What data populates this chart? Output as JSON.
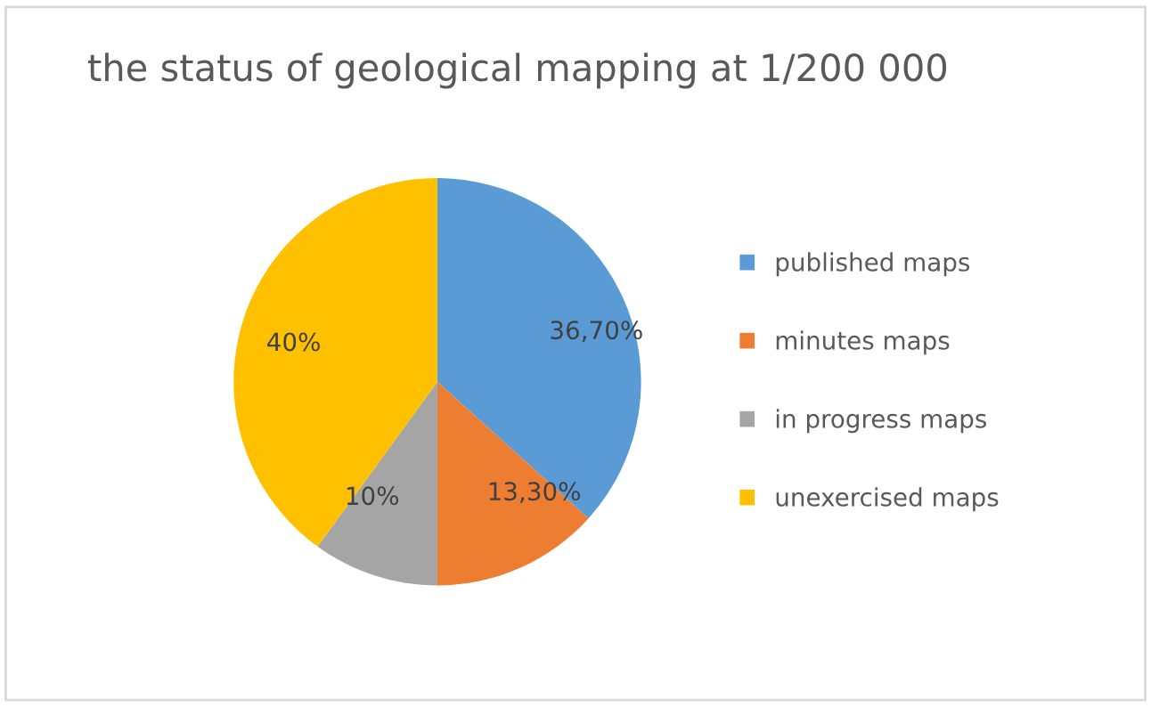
{
  "chart_data": {
    "type": "pie",
    "title": "the status of geological mapping at 1/200 000",
    "categories": [
      "published maps",
      "minutes maps",
      "in progress maps",
      "unexercised maps"
    ],
    "values": [
      36.7,
      13.3,
      10,
      40
    ],
    "value_labels": [
      "36,70%",
      "13,30%",
      "10%",
      "40%"
    ],
    "colors": [
      "#5b9bd5",
      "#ed7d31",
      "#a5a5a5",
      "#ffc000"
    ],
    "legend": "right"
  }
}
